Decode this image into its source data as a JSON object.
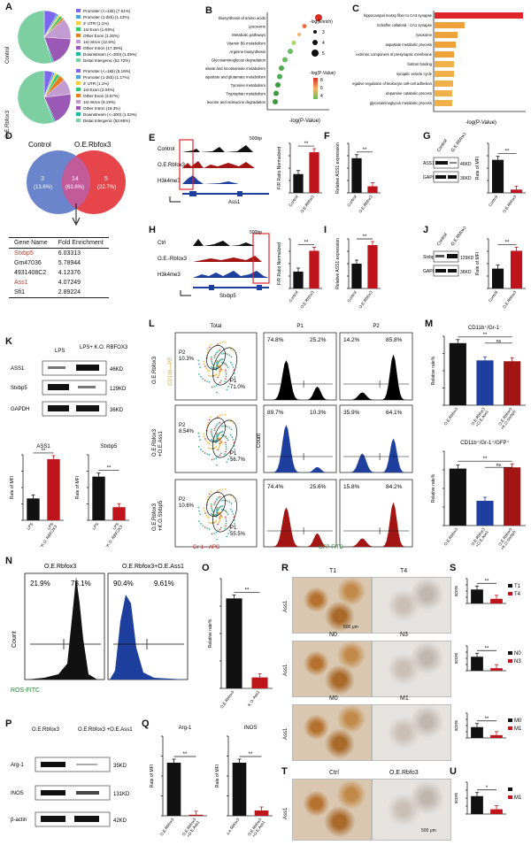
{
  "panels": {
    "A": {
      "label": "A",
      "rows": [
        "Control",
        "O.E.Rbfox3"
      ],
      "legend_control": [
        "Promoter (<=1kb) (7.61%)",
        "Promoter (1-2kb) (1.13%)",
        "3' UTR (1.1%)",
        "1st Exon (1.63%)",
        "Other Exon (1.26%)",
        "1st Intron (12.5%)",
        "Other Intron (17.39%)",
        "Downstream (<=300) (1.09%)",
        "Distal Intergenic (52.72%)"
      ],
      "legend_oe": [
        "Promoter (<=1kb) (5.16%)",
        "Promoter (1-2kb) (1.17%)",
        "3' UTR (1.1%)",
        "1st Exon (2.04%)",
        "Other Exon (3.57%)",
        "1st Intron (9.19%)",
        "Other Intron (19.3%)",
        "Downstream (<=300) (1.02%)",
        "Distal Intergenic (53.66%)"
      ],
      "slice_colors": [
        "#7b68ee",
        "#4aa3df",
        "#f4d03f",
        "#2ecc71",
        "#e67e22",
        "#c39bd3",
        "#9b59b6",
        "#1abc9c",
        "#7dcea0"
      ]
    },
    "B": {
      "label": "B",
      "terms": [
        "Biosynthesis of amino acids",
        "Lysosome",
        "Metabolic pathways",
        "Vitamin B6 metabolism",
        "Arginine biosynthesis",
        "Glycosaminoglycan degradation",
        "Nicotinate and nicotinamide metabolism",
        "Alanine, aspartate and glutamate metabolism",
        "Tyrosine metabolism",
        "Tryptophan metabolism",
        "Valine, leucine and isoleucine degradation"
      ],
      "xlabel": "-log(P-Value)",
      "size_title": "-log(Enrich)",
      "size_values": [
        "3",
        "4",
        "5"
      ],
      "color_title": "-log(P-Value)",
      "color_values": [
        "8",
        "6",
        "4"
      ]
    },
    "C": {
      "label": "C",
      "terms": [
        "hippocampal mossy fiber to CA3 synapse",
        "Schaffer collateral - CA1 synapse",
        "lysosome",
        "aspartate metabolic process",
        "extrinsic component of presynaptic membrane",
        "bottom binding",
        "synaptic vesicle cycle",
        "negative regulation of leukocyte cell-cell adhesion",
        "dopamine catabolic process",
        "glycosaminoglycan metabolic process"
      ],
      "xlabel": "-log(P-Value)"
    },
    "D": {
      "label": "D",
      "left_name": "Control",
      "right_name": "O.E.Rbfox3",
      "left_count": "3",
      "left_pct": "(13.6%)",
      "mid_count": "14",
      "mid_pct": "(63.6%)",
      "right_count": "5",
      "right_pct": "(22.7%)",
      "table_header": [
        "Gene Name",
        "Fold Enrichment"
      ],
      "table_rows": [
        [
          "Stxbp5",
          "6.03313"
        ],
        [
          "Gm47036",
          "5.78944"
        ],
        [
          "4931408C2",
          "4.12376"
        ],
        [
          "Ass1",
          "4.07249"
        ],
        [
          "Sfi1",
          "2.89224"
        ]
      ]
    },
    "E": {
      "label": "E",
      "tracks": [
        "Control",
        "O.E.Rbfox3",
        "H3k4me3"
      ],
      "gene": "Ass1",
      "scale": "500bp",
      "ylabel": "F/R Ratio Normalized",
      "xcats": [
        "Control",
        "O.E.Rbfox3"
      ],
      "sig": "**"
    },
    "F": {
      "label": "F",
      "ylabel": "Relative ASS1 expression",
      "xcats": [
        "Control",
        "O.E.Rbfox3"
      ],
      "sig": "**"
    },
    "G": {
      "label": "G",
      "cols": [
        "Control",
        "O.E.Rbfox3"
      ],
      "rows": [
        "ASS1",
        "GAPDH"
      ],
      "sizes": [
        "46KD",
        "36KD"
      ],
      "ylabel": "Rate of MFI",
      "sig": "**"
    },
    "H": {
      "label": "H",
      "tracks": [
        "Ctrl",
        "O.E.-Rbfox3",
        "H3k4me3"
      ],
      "gene": "Stxbp5",
      "scale": "500bp",
      "ylabel": "F/R Ratio Normalized",
      "xcats": [
        "Control",
        "O.E.Rbfox3"
      ],
      "sig": "**"
    },
    "I": {
      "label": "I",
      "ylabel": "Relative ASS1 expression",
      "xcats": [
        "Control",
        "O.E.Rbfox3"
      ],
      "sig": "**"
    },
    "J": {
      "label": "J",
      "cols": [
        "Control",
        "O.E.Rbfox3"
      ],
      "rows": [
        "Stxbp5",
        "GAPDH"
      ],
      "sizes": [
        "129KD",
        "36KD"
      ],
      "ylabel": "Rate of MFI",
      "sig": "**"
    },
    "K": {
      "label": "K",
      "cols": [
        "LPS",
        "LPS+\nK.O. RBFOX3"
      ],
      "rows": [
        "ASS1",
        "Stxbp5",
        "GAPDH"
      ],
      "sizes": [
        "46KD",
        "129KD",
        "36KD"
      ],
      "chart1_title": "ASS1",
      "chart2_title": "Stxbp5",
      "ylabel": "Rate of MFI",
      "xcats": [
        "LPS",
        "LPS+\nK.O. RBFOX3"
      ],
      "sig": "**"
    },
    "L": {
      "label": "L",
      "col_titles": [
        "Total",
        "P1",
        "P2"
      ],
      "rows": [
        "O.E.Rbfox3",
        "O.E.Rbfox3\n+O.E.Ass1",
        "O.E.Rbfox3\n+K.O.Stxbp5"
      ],
      "gates": [
        {
          "p2": "P2\n10.3%",
          "p1": "P1\n71.0%"
        },
        {
          "p2": "P2\n8.54%",
          "p1": "P1\n56.7%"
        },
        {
          "p2": "P2\n10.6%",
          "p1": "P1\n55.5%"
        }
      ],
      "p1_pcts": [
        [
          "74.8%",
          "25.2%"
        ],
        [
          "89.7%",
          "10.3%"
        ],
        [
          "74.4%",
          "25.6%"
        ]
      ],
      "p2_pcts": [
        [
          "14.2%",
          "85.8%"
        ],
        [
          "35.9%",
          "64.1%"
        ],
        [
          "15.8%",
          "84.2%"
        ]
      ],
      "ylabel_scatter": "CD11b—PE",
      "xlabel_scatter": "Gr-1—APC",
      "ylabel_hist": "Count",
      "xlabel_hist": "GFP-FITC",
      "colors": [
        "#000000",
        "#1f3f9e",
        "#a31515"
      ]
    },
    "M": {
      "label": "M",
      "chart1_title": "CD11b⁺/Gr-1⁻",
      "chart2_title": "CD11b⁺/Gr-1⁺/GFP⁺",
      "ylabel": "Relative rate%",
      "xcats": [
        "O.E.Rbfox3",
        "O.E.Rbfox3\n+O.E.Ass1",
        "O.E.Rbfox3\n+K.O.Stxbp5"
      ],
      "sig1": "**",
      "ns": "ns",
      "sig2": "**"
    },
    "N": {
      "label": "N",
      "titles": [
        "O.E.Rbfox3",
        "O.E.Rbfox3+O.E.Ass1"
      ],
      "pcts": [
        [
          "21.9%",
          "78.1%"
        ],
        [
          "90.4%",
          "9.61%"
        ]
      ],
      "ylabel": "Count",
      "xlabel": "ROS-FITC"
    },
    "O": {
      "label": "O",
      "ylabel": "Relative rate%",
      "xcats": [
        "O.E.Rbfox3",
        "K.O. Ass1"
      ],
      "sig": "**"
    },
    "P": {
      "label": "P",
      "cols": [
        "O.E.Rbfox3",
        "O.E.Rbfox3\n+O.E.Ass1"
      ],
      "rows": [
        "Arg-1",
        "INOS",
        "β-actin"
      ],
      "sizes": [
        "35KD",
        "131KD",
        "42KD"
      ]
    },
    "Q": {
      "label": "Q",
      "chart1_title": "Arg-1",
      "chart2_title": "INOS",
      "ylabel": "Rate of MFI",
      "xcats1": [
        "O.E.Rbfox3",
        "O.E.Rbfox3\n+O.E.Ass1"
      ],
      "xcats2": [
        "o.e Rbfox3",
        "O.E.Rbfox3\n+O.E.Ass1"
      ],
      "sig": "**"
    },
    "R": {
      "label": "R",
      "row_label": "Ass1",
      "pairs": [
        [
          "T1",
          "T4"
        ],
        [
          "N0",
          "N3"
        ],
        [
          "M0",
          "M1"
        ]
      ],
      "scale": "500 μm"
    },
    "S": {
      "label": "S",
      "ylabel": "score",
      "legends": [
        [
          "T1",
          "T4"
        ],
        [
          "N0",
          "N3"
        ],
        [
          "M0",
          "M1"
        ]
      ],
      "sig": "**"
    },
    "T": {
      "label": "T",
      "row_label": "Ass1",
      "cols": [
        "Ctrl",
        "O.E.Rbfo3"
      ],
      "scale": "500 μm"
    },
    "U": {
      "label": "U",
      "ylabel": "score",
      "legend": [
        "",
        "M1"
      ],
      "sig": "*"
    }
  },
  "chart_data": [
    {
      "type": "bar",
      "categories": [
        "Control",
        "O.E.Rbfox3"
      ],
      "values": [
        0.95,
        2.05
      ],
      "ylabel": "F/R Ratio Normalized",
      "ylim": [
        0,
        2.5
      ]
    },
    {
      "type": "bar",
      "categories": [
        "Control",
        "O.E.Rbfox3"
      ],
      "values": [
        1.05,
        0.2
      ],
      "ylabel": "Relative ASS1 expression",
      "ylim": [
        0,
        1.5
      ]
    },
    {
      "type": "bar",
      "categories": [
        "Control",
        "O.E.Rbfox3"
      ],
      "values": [
        1.0,
        0.1
      ],
      "ylabel": "Rate of MFI",
      "ylim": [
        0,
        1.5
      ]
    },
    {
      "type": "bar",
      "categories": [
        "Control",
        "O.E.Rbfox3"
      ],
      "values": [
        0.85,
        1.9
      ],
      "ylabel": "F/R Ratio Normalized",
      "ylim": [
        0,
        2.5
      ]
    },
    {
      "type": "bar",
      "categories": [
        "Control",
        "O.E.Rbfox3"
      ],
      "values": [
        1.0,
        1.75
      ],
      "ylabel": "Relative ASS1 expression",
      "ylim": [
        0,
        2.0
      ]
    },
    {
      "type": "bar",
      "categories": [
        "Control",
        "O.E.Rbfox3"
      ],
      "values": [
        1.0,
        1.9
      ],
      "ylabel": "Rate of MFI",
      "ylim": [
        0,
        2.5
      ]
    },
    {
      "type": "bar",
      "title": "ASS1",
      "categories": [
        "LPS",
        "LPS+K.O. RBFOX3"
      ],
      "values": [
        1.0,
        2.8
      ],
      "ylabel": "Rate of MFI",
      "ylim": [
        0,
        3.0
      ]
    },
    {
      "type": "bar",
      "title": "Stxbp5",
      "categories": [
        "LPS",
        "LPS+K.O. RBFOX3"
      ],
      "values": [
        1.0,
        0.3
      ],
      "ylabel": "Rate of MFI",
      "ylim": [
        0,
        1.5
      ]
    },
    {
      "type": "bar",
      "title": "CD11b+/Gr-1-",
      "categories": [
        "O.E.Rbfox3",
        "O.E.Rbfox3+O.E.Ass1",
        "O.E.Rbfox3+K.O.Stxbp5"
      ],
      "values": [
        72,
        52,
        51
      ],
      "ylabel": "Relative rate%",
      "ylim": [
        0,
        80
      ]
    },
    {
      "type": "bar",
      "title": "CD11b+/Gr-1+/GFP+",
      "categories": [
        "O.E.Rbfox3",
        "O.E.Rbfox3+O.E.Ass1",
        "O.E.Rbfox3+K.O.Stxbp5"
      ],
      "values": [
        23,
        10,
        23.5
      ],
      "ylabel": "Relative rate%",
      "ylim": [
        0,
        30
      ]
    },
    {
      "type": "bar",
      "categories": [
        "O.E.Rbfox3",
        "K.O. Ass1"
      ],
      "values": [
        82,
        10
      ],
      "ylabel": "Relative rate%",
      "ylim": [
        0,
        100
      ]
    },
    {
      "type": "bar",
      "title": "Arg-1",
      "categories": [
        "O.E.Rbfox3",
        "O.E.Rbfox3+O.E.Ass1"
      ],
      "values": [
        1.0,
        0.02
      ],
      "ylabel": "Rate of MFI",
      "ylim": [
        0,
        1.5
      ]
    },
    {
      "type": "bar",
      "title": "INOS",
      "categories": [
        "o.e Rbfox3",
        "O.E.Rbfox3+O.E.Ass1"
      ],
      "values": [
        1.0,
        0.1
      ],
      "ylabel": "Rate of MFI",
      "ylim": [
        0,
        1.5
      ]
    },
    {
      "type": "bar",
      "categories": [
        "T1",
        "T4"
      ],
      "values": [
        4.5,
        1.5
      ],
      "ylabel": "score",
      "ylim": [
        0,
        8
      ]
    },
    {
      "type": "bar",
      "categories": [
        "N0",
        "N3"
      ],
      "values": [
        4.5,
        0.8
      ],
      "ylabel": "score",
      "ylim": [
        0,
        8
      ]
    },
    {
      "type": "bar",
      "categories": [
        "M0",
        "M1"
      ],
      "values": [
        3.5,
        0.9
      ],
      "ylabel": "score",
      "ylim": [
        0,
        8
      ]
    },
    {
      "type": "bar",
      "categories": [
        "Ctrl",
        "M1"
      ],
      "values": [
        4.5,
        1.2
      ],
      "ylabel": "score",
      "ylim": [
        0,
        8
      ]
    }
  ]
}
